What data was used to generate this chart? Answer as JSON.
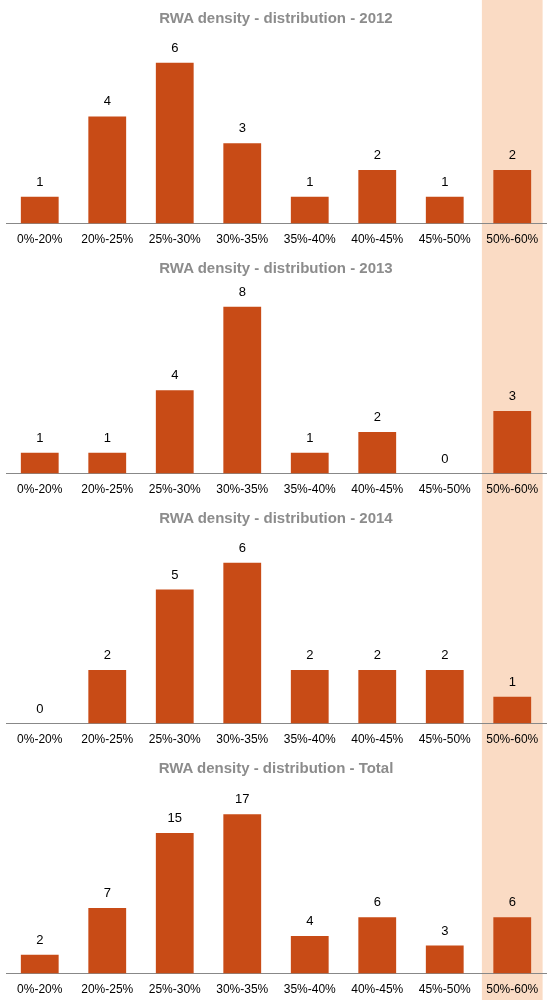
{
  "chart_data": [
    {
      "type": "bar",
      "title": "RWA density - distribution - 2012",
      "categories": [
        "0%-20%",
        "20%-25%",
        "25%-30%",
        "30%-35%",
        "35%-40%",
        "40%-45%",
        "45%-50%",
        "50%-60%"
      ],
      "values": [
        1,
        4,
        6,
        3,
        1,
        2,
        1,
        2
      ],
      "color": "#c84b16",
      "data_labels": true,
      "grid": false,
      "legend": false,
      "tick_labels": "x",
      "bands": [
        {
          "axis": "x",
          "from": "50%-60%",
          "to": "50%-60%",
          "color": "#f6c39c"
        }
      ]
    },
    {
      "type": "bar",
      "title": "RWA density - distribution - 2013",
      "categories": [
        "0%-20%",
        "20%-25%",
        "25%-30%",
        "30%-35%",
        "35%-40%",
        "40%-45%",
        "45%-50%",
        "50%-60%"
      ],
      "values": [
        1,
        1,
        4,
        8,
        1,
        2,
        0,
        3
      ],
      "color": "#c84b16",
      "data_labels": true,
      "grid": false,
      "legend": false,
      "tick_labels": "x",
      "bands": [
        {
          "axis": "x",
          "from": "50%-60%",
          "to": "50%-60%",
          "color": "#f6c39c"
        }
      ]
    },
    {
      "type": "bar",
      "title": "RWA density - distribution - 2014",
      "categories": [
        "0%-20%",
        "20%-25%",
        "25%-30%",
        "30%-35%",
        "35%-40%",
        "40%-45%",
        "45%-50%",
        "50%-60%"
      ],
      "values": [
        0,
        2,
        5,
        6,
        2,
        2,
        2,
        1
      ],
      "color": "#c84b16",
      "data_labels": true,
      "grid": false,
      "legend": false,
      "tick_labels": "x",
      "bands": [
        {
          "axis": "x",
          "from": "50%-60%",
          "to": "50%-60%",
          "color": "#f6c39c"
        }
      ]
    },
    {
      "type": "bar",
      "title": "RWA density - distribution - Total",
      "categories": [
        "0%-20%",
        "20%-25%",
        "25%-30%",
        "30%-35%",
        "35%-40%",
        "40%-45%",
        "45%-50%",
        "50%-60%"
      ],
      "values": [
        2,
        7,
        15,
        17,
        4,
        6,
        3,
        6
      ],
      "color": "#c84b16",
      "data_labels": true,
      "grid": false,
      "legend": false,
      "tick_labels": "x",
      "bands": [
        {
          "axis": "x",
          "from": "50%-60%",
          "to": "50%-60%",
          "color": "#f6c39c"
        }
      ]
    }
  ]
}
